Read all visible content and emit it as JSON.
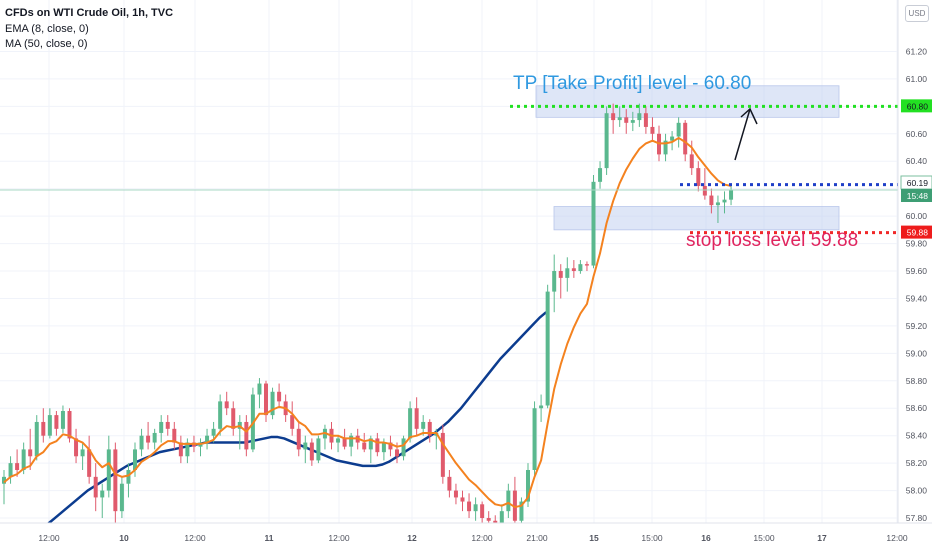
{
  "legend": {
    "title": "CFDs on WTI Crude Oil, 1h, TVC",
    "ema": "EMA (8, close, 0)",
    "ma": "MA (50, close, 0)"
  },
  "currency_label": "USD",
  "colors": {
    "up": "#5ab88e",
    "down": "#e05a6c",
    "ema": "#f4821f",
    "ma": "#0c3c8f",
    "grid": "#f0f3fa",
    "axis_text": "#50535e",
    "tp": "#22e022",
    "stop": "#f02828",
    "entry": "#1f3fc8",
    "zone": "rgba(190,205,240,0.5)",
    "tp_text": "#2f99e0",
    "stop_text": "#e0245e"
  },
  "chart_data": {
    "type": "candlestick",
    "symbol": "CFDs on WTI Crude Oil",
    "timeframe": "1h",
    "y_axis": {
      "ylim": [
        57.72,
        61.32
      ],
      "ticks": [
        "61.20",
        "61.00",
        "60.80",
        "60.60",
        "60.40",
        "60.20",
        "60.00",
        "59.80",
        "59.60",
        "59.40",
        "59.20",
        "59.00",
        "58.80",
        "58.60",
        "58.40",
        "58.20",
        "58.00",
        "57.80"
      ]
    },
    "x_axis": {
      "ticks": [
        "12:00",
        "10",
        "12:00",
        "11",
        "12:00",
        "12",
        "12:00",
        "21:00",
        "15",
        "15:00",
        "16",
        "15:00",
        "17",
        "12:00"
      ]
    },
    "price_labels": [
      {
        "text": "60.80",
        "value": 60.8,
        "role": "take-profit"
      },
      {
        "text": "60.23",
        "value": 60.23,
        "role": "entry"
      },
      {
        "text": "60.19",
        "value": 60.19,
        "role": "last-price"
      },
      {
        "text": "15:48",
        "value": 60.1,
        "role": "countdown"
      },
      {
        "text": "59.88",
        "value": 59.88,
        "role": "stop-loss"
      }
    ],
    "annotations": {
      "tp_text": "TP [Take Profit] level  - 60.80",
      "stop_text": "stop loss level 59.88"
    },
    "ohlc": [
      [
        58.05,
        58.15,
        57.9,
        58.1
      ],
      [
        58.1,
        58.25,
        58.05,
        58.2
      ],
      [
        58.2,
        58.3,
        58.1,
        58.15
      ],
      [
        58.15,
        58.35,
        58.12,
        58.3
      ],
      [
        58.3,
        58.45,
        58.15,
        58.25
      ],
      [
        58.25,
        58.55,
        58.22,
        58.5
      ],
      [
        58.5,
        58.6,
        58.35,
        58.4
      ],
      [
        58.4,
        58.6,
        58.38,
        58.55
      ],
      [
        58.55,
        58.58,
        58.4,
        58.45
      ],
      [
        58.45,
        58.62,
        58.42,
        58.58
      ],
      [
        58.58,
        58.6,
        58.35,
        58.38
      ],
      [
        58.38,
        58.45,
        58.2,
        58.25
      ],
      [
        58.25,
        58.35,
        58.15,
        58.3
      ],
      [
        58.3,
        58.4,
        58.05,
        58.1
      ],
      [
        58.1,
        58.2,
        57.85,
        57.95
      ],
      [
        57.95,
        58.05,
        57.8,
        58.0
      ],
      [
        58.0,
        58.4,
        57.95,
        58.3
      ],
      [
        58.3,
        58.35,
        57.75,
        57.85
      ],
      [
        57.85,
        58.1,
        57.8,
        58.05
      ],
      [
        58.05,
        58.2,
        57.95,
        58.15
      ],
      [
        58.15,
        58.35,
        58.1,
        58.3
      ],
      [
        58.3,
        58.45,
        58.25,
        58.4
      ],
      [
        58.4,
        58.5,
        58.3,
        58.35
      ],
      [
        58.35,
        58.45,
        58.3,
        58.42
      ],
      [
        58.42,
        58.55,
        58.35,
        58.5
      ],
      [
        58.5,
        58.55,
        58.4,
        58.45
      ],
      [
        58.45,
        58.5,
        58.3,
        58.35
      ],
      [
        58.35,
        58.4,
        58.2,
        58.25
      ],
      [
        58.25,
        58.38,
        58.2,
        58.35
      ],
      [
        58.35,
        58.4,
        58.28,
        58.32
      ],
      [
        58.32,
        58.38,
        58.25,
        58.35
      ],
      [
        58.35,
        58.45,
        58.3,
        58.4
      ],
      [
        58.4,
        58.5,
        58.35,
        58.45
      ],
      [
        58.45,
        58.7,
        58.4,
        58.65
      ],
      [
        58.65,
        58.72,
        58.55,
        58.6
      ],
      [
        58.6,
        58.65,
        58.4,
        58.45
      ],
      [
        58.45,
        58.55,
        58.3,
        58.5
      ],
      [
        58.5,
        58.55,
        58.25,
        58.3
      ],
      [
        58.3,
        58.75,
        58.28,
        58.7
      ],
      [
        58.7,
        58.82,
        58.6,
        58.78
      ],
      [
        58.78,
        58.8,
        58.5,
        58.55
      ],
      [
        58.55,
        58.75,
        58.52,
        58.72
      ],
      [
        58.72,
        58.78,
        58.6,
        58.65
      ],
      [
        58.65,
        58.7,
        58.5,
        58.55
      ],
      [
        58.55,
        58.65,
        58.4,
        58.45
      ],
      [
        58.45,
        58.5,
        58.25,
        58.3
      ],
      [
        58.3,
        58.4,
        58.2,
        58.35
      ],
      [
        58.35,
        58.38,
        58.18,
        58.22
      ],
      [
        58.22,
        58.4,
        58.2,
        58.38
      ],
      [
        58.38,
        58.48,
        58.3,
        58.45
      ],
      [
        58.45,
        58.5,
        58.3,
        58.35
      ],
      [
        58.35,
        58.4,
        58.28,
        58.38
      ],
      [
        58.38,
        58.45,
        58.3,
        58.32
      ],
      [
        58.32,
        58.42,
        58.25,
        58.4
      ],
      [
        58.4,
        58.45,
        58.3,
        58.35
      ],
      [
        58.35,
        58.42,
        58.28,
        58.3
      ],
      [
        58.3,
        58.4,
        58.2,
        58.38
      ],
      [
        58.38,
        58.42,
        58.25,
        58.28
      ],
      [
        58.28,
        58.38,
        58.22,
        58.35
      ],
      [
        58.35,
        58.4,
        58.25,
        58.3
      ],
      [
        58.3,
        58.35,
        58.2,
        58.25
      ],
      [
        58.25,
        58.4,
        58.22,
        58.38
      ],
      [
        58.38,
        58.65,
        58.35,
        58.6
      ],
      [
        58.6,
        58.68,
        58.4,
        58.45
      ],
      [
        58.45,
        58.55,
        58.4,
        58.5
      ],
      [
        58.5,
        58.52,
        58.35,
        58.4
      ],
      [
        58.4,
        58.45,
        58.3,
        58.42
      ],
      [
        58.42,
        58.48,
        58.05,
        58.1
      ],
      [
        58.1,
        58.15,
        57.95,
        58.0
      ],
      [
        58.0,
        58.05,
        57.9,
        57.95
      ],
      [
        57.95,
        58.0,
        57.85,
        57.92
      ],
      [
        57.92,
        57.98,
        57.8,
        57.85
      ],
      [
        57.85,
        57.95,
        57.78,
        57.9
      ],
      [
        57.9,
        57.92,
        57.75,
        57.8
      ],
      [
        57.8,
        57.85,
        57.72,
        57.78
      ],
      [
        57.78,
        57.82,
        57.7,
        57.75
      ],
      [
        57.75,
        57.9,
        57.72,
        57.85
      ],
      [
        57.85,
        58.05,
        57.8,
        58.0
      ],
      [
        58.0,
        58.1,
        57.72,
        57.78
      ],
      [
        57.78,
        57.95,
        57.75,
        57.92
      ],
      [
        57.92,
        58.2,
        57.88,
        58.15
      ],
      [
        58.15,
        58.65,
        58.1,
        58.6
      ],
      [
        58.6,
        58.7,
        58.5,
        58.62
      ],
      [
        58.62,
        59.5,
        58.6,
        59.45
      ],
      [
        59.45,
        59.72,
        59.3,
        59.6
      ],
      [
        59.6,
        59.65,
        59.4,
        59.55
      ],
      [
        59.55,
        59.7,
        59.45,
        59.62
      ],
      [
        59.62,
        59.68,
        59.55,
        59.6
      ],
      [
        59.6,
        59.68,
        59.58,
        59.65
      ],
      [
        59.65,
        59.67,
        59.6,
        59.64
      ],
      [
        59.64,
        60.3,
        59.62,
        60.25
      ],
      [
        60.25,
        60.4,
        60.2,
        60.35
      ],
      [
        60.35,
        60.8,
        60.3,
        60.75
      ],
      [
        60.75,
        60.82,
        60.6,
        60.7
      ],
      [
        60.7,
        60.8,
        60.65,
        60.72
      ],
      [
        60.72,
        60.78,
        60.6,
        60.68
      ],
      [
        60.68,
        60.76,
        60.62,
        60.7
      ],
      [
        60.7,
        60.82,
        60.65,
        60.75
      ],
      [
        60.75,
        60.8,
        60.6,
        60.65
      ],
      [
        60.65,
        60.72,
        60.55,
        60.6
      ],
      [
        60.6,
        60.66,
        60.4,
        60.45
      ],
      [
        60.45,
        60.6,
        60.4,
        60.55
      ],
      [
        60.55,
        60.62,
        60.48,
        60.58
      ],
      [
        60.58,
        60.72,
        60.5,
        60.68
      ],
      [
        60.68,
        60.7,
        60.4,
        60.45
      ],
      [
        60.45,
        60.55,
        60.3,
        60.35
      ],
      [
        60.35,
        60.4,
        60.18,
        60.22
      ],
      [
        60.22,
        60.35,
        60.12,
        60.15
      ],
      [
        60.15,
        60.2,
        60.02,
        60.08
      ],
      [
        60.08,
        60.15,
        59.95,
        60.1
      ],
      [
        60.1,
        60.18,
        60.02,
        60.12
      ],
      [
        60.12,
        60.22,
        60.08,
        60.19
      ]
    ],
    "ema8": [
      58.06,
      58.1,
      58.12,
      58.16,
      58.18,
      58.25,
      58.28,
      58.34,
      58.36,
      58.41,
      58.4,
      58.37,
      58.35,
      58.3,
      58.22,
      58.17,
      58.2,
      58.12,
      58.1,
      58.11,
      58.15,
      58.21,
      58.24,
      58.28,
      58.33,
      58.36,
      58.36,
      58.34,
      58.34,
      58.34,
      58.34,
      58.35,
      58.37,
      58.43,
      58.47,
      58.46,
      58.47,
      58.43,
      58.49,
      58.56,
      58.56,
      58.59,
      58.61,
      58.6,
      58.56,
      58.5,
      58.47,
      58.41,
      58.41,
      58.42,
      58.4,
      58.4,
      58.38,
      58.38,
      58.38,
      58.36,
      58.37,
      58.35,
      58.35,
      58.34,
      58.32,
      58.33,
      58.39,
      58.4,
      58.42,
      58.42,
      58.42,
      58.34,
      58.27,
      58.2,
      58.14,
      58.08,
      58.04,
      57.99,
      57.94,
      57.9,
      57.89,
      57.91,
      57.88,
      57.89,
      57.95,
      58.1,
      58.22,
      58.49,
      58.74,
      58.92,
      59.07,
      59.19,
      59.29,
      59.36,
      59.56,
      59.73,
      59.95,
      60.11,
      60.24,
      60.34,
      60.42,
      60.49,
      60.53,
      60.55,
      60.53,
      60.53,
      60.54,
      60.57,
      60.54,
      60.5,
      60.43,
      60.37,
      60.31,
      60.26,
      60.23,
      60.22
    ],
    "ma50": [
      57.76,
      57.8,
      57.84,
      57.88,
      57.92,
      57.96,
      58.0,
      58.03,
      58.06,
      58.09,
      58.12,
      58.15,
      58.18,
      58.2,
      58.22,
      58.24,
      58.26,
      58.28,
      58.29,
      58.3,
      58.31,
      58.32,
      58.33,
      58.34,
      58.35,
      58.35,
      58.35,
      58.35,
      58.35,
      58.35,
      58.35,
      58.36,
      58.37,
      58.38,
      58.39,
      58.39,
      58.38,
      58.36,
      58.34,
      58.32,
      58.3,
      58.28,
      58.26,
      58.24,
      58.22,
      58.21,
      58.2,
      58.19,
      58.18,
      58.18,
      58.18,
      58.19,
      58.21,
      58.24,
      58.27,
      58.3,
      58.33,
      58.36,
      58.39,
      58.42,
      58.46,
      58.5,
      58.55,
      58.6,
      58.66,
      58.72,
      58.78,
      58.84,
      58.9,
      58.96,
      59.01,
      59.06,
      59.11,
      59.16,
      59.21,
      59.26,
      59.3
    ]
  }
}
